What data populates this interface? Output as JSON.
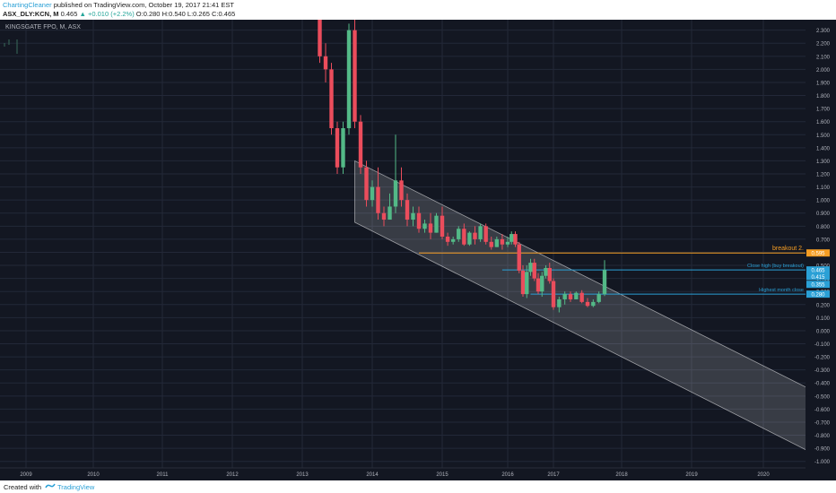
{
  "header": {
    "author": "ChartingCleaner",
    "published": "published on TradingView.com, October 19, 2017 21:41 EST",
    "symbol": "ASX_DLY:KCN, M",
    "last": "0.465",
    "change": "▲ +0.010 (+2.2%)",
    "ohlc": "O:0.280 H:0.540 L:0.265 C:0.465"
  },
  "footer": {
    "created_with": "Created with",
    "brand": "TradingView",
    "logo_icon": "tradingview-logo-icon"
  },
  "colors": {
    "bg": "#131722",
    "grid": "#232838",
    "up": "#53b987",
    "down": "#eb4d5c",
    "channel": "#ffffff",
    "orange": "#f59d23",
    "cyan": "#2aa0d6",
    "axis_text": "#b2b5be"
  },
  "chart_data": {
    "type": "candlestick",
    "title": "KINGSGATE FPO, M, ASX",
    "ylim": [
      -1.05,
      2.38
    ],
    "y_ticks": [
      2.3,
      2.2,
      2.1,
      2.0,
      1.9,
      1.8,
      1.7,
      1.6,
      1.5,
      1.4,
      1.3,
      1.2,
      1.1,
      1.0,
      0.9,
      0.8,
      0.7,
      0.6,
      0.5,
      0.4,
      0.3,
      0.2,
      0.1,
      0.0,
      -0.1,
      -0.2,
      -0.3,
      -0.4,
      -0.5,
      -0.6,
      -0.7,
      -0.8,
      -0.9,
      -1.0
    ],
    "y_tick_labels": [
      "2.300",
      "2.200",
      "2.100",
      "2.000",
      "1.900",
      "1.800",
      "1.700",
      "1.600",
      "1.500",
      "1.400",
      "1.300",
      "1.200",
      "1.100",
      "1.000",
      "0.900",
      "0.800",
      "0.700",
      "0.600",
      "0.500",
      "0.400",
      "0.300",
      "0.200",
      "0.100",
      "0.000",
      "-0.100",
      "-0.200",
      "-0.300",
      "-0.400",
      "-0.500",
      "-0.600",
      "-0.700",
      "-0.800",
      "-0.900",
      "-1.000"
    ],
    "x_ticks": [
      "2009",
      "2010",
      "2011",
      "2012",
      "2013",
      "2014",
      "2015",
      "2016",
      "2017",
      "2018",
      "2019",
      "2020"
    ],
    "candles": [
      [
        "2013-04",
        2.45,
        2.5,
        2.05,
        2.1
      ],
      [
        "2013-05",
        2.1,
        2.2,
        1.9,
        2.0
      ],
      [
        "2013-06",
        2.0,
        2.05,
        1.5,
        1.55
      ],
      [
        "2013-07",
        1.55,
        1.6,
        1.2,
        1.25
      ],
      [
        "2013-08",
        1.25,
        1.6,
        1.2,
        1.55
      ],
      [
        "2013-09",
        1.55,
        2.35,
        1.5,
        2.3
      ],
      [
        "2013-10",
        2.3,
        2.4,
        1.55,
        1.6
      ],
      [
        "2013-11",
        1.6,
        1.65,
        1.2,
        1.25
      ],
      [
        "2013-12",
        1.25,
        1.3,
        0.95,
        1.0
      ],
      [
        "2014-01",
        1.0,
        1.15,
        0.95,
        1.1
      ],
      [
        "2014-02",
        1.1,
        1.25,
        0.85,
        0.9
      ],
      [
        "2014-03",
        0.9,
        0.95,
        0.8,
        0.85
      ],
      [
        "2014-04",
        0.85,
        1.05,
        0.85,
        0.95
      ],
      [
        "2014-05",
        0.95,
        1.5,
        0.9,
        1.15
      ],
      [
        "2014-06",
        1.15,
        1.25,
        0.95,
        1.0
      ],
      [
        "2014-07",
        1.0,
        1.05,
        0.8,
        0.85
      ],
      [
        "2014-08",
        0.85,
        0.95,
        0.8,
        0.9
      ],
      [
        "2014-09",
        0.9,
        0.95,
        0.75,
        0.78
      ],
      [
        "2014-10",
        0.78,
        0.85,
        0.75,
        0.82
      ],
      [
        "2014-11",
        0.82,
        0.9,
        0.7,
        0.75
      ],
      [
        "2014-12",
        0.75,
        0.9,
        0.75,
        0.88
      ],
      [
        "2015-01",
        0.88,
        0.95,
        0.7,
        0.72
      ],
      [
        "2015-02",
        0.72,
        0.75,
        0.65,
        0.68
      ],
      [
        "2015-03",
        0.68,
        0.72,
        0.66,
        0.7
      ],
      [
        "2015-04",
        0.7,
        0.8,
        0.68,
        0.78
      ],
      [
        "2015-05",
        0.78,
        0.82,
        0.65,
        0.66
      ],
      [
        "2015-06",
        0.66,
        0.76,
        0.65,
        0.75
      ],
      [
        "2015-07",
        0.75,
        0.8,
        0.66,
        0.7
      ],
      [
        "2015-08",
        0.7,
        0.82,
        0.68,
        0.8
      ],
      [
        "2015-09",
        0.8,
        0.82,
        0.66,
        0.68
      ],
      [
        "2015-10",
        0.68,
        0.72,
        0.62,
        0.64
      ],
      [
        "2015-11",
        0.64,
        0.72,
        0.64,
        0.7
      ],
      [
        "2015-12",
        0.7,
        0.74,
        0.62,
        0.66
      ],
      [
        "2016-01",
        0.66,
        0.72,
        0.64,
        0.68
      ],
      [
        "2016-02",
        0.68,
        0.76,
        0.66,
        0.74
      ],
      [
        "2016-03",
        0.74,
        0.76,
        0.64,
        0.66
      ],
      [
        "2016-04",
        0.66,
        0.68,
        0.44,
        0.46
      ],
      [
        "2016-05",
        0.46,
        0.5,
        0.26,
        0.28
      ],
      [
        "2016-06",
        0.28,
        0.5,
        0.25,
        0.45
      ],
      [
        "2016-07",
        0.45,
        0.55,
        0.42,
        0.52
      ],
      [
        "2016-08",
        0.52,
        0.55,
        0.38,
        0.4
      ],
      [
        "2016-09",
        0.4,
        0.44,
        0.28,
        0.3
      ],
      [
        "2016-10",
        0.3,
        0.45,
        0.26,
        0.42
      ],
      [
        "2016-11",
        0.42,
        0.5,
        0.4,
        0.48
      ],
      [
        "2016-12",
        0.48,
        0.52,
        0.36,
        0.38
      ],
      [
        "2017-01",
        0.38,
        0.4,
        0.16,
        0.18
      ],
      [
        "2017-02",
        0.18,
        0.26,
        0.14,
        0.24
      ],
      [
        "2017-03",
        0.24,
        0.3,
        0.2,
        0.28
      ],
      [
        "2017-04",
        0.28,
        0.3,
        0.22,
        0.24
      ],
      [
        "2017-05",
        0.24,
        0.3,
        0.24,
        0.29
      ],
      [
        "2017-06",
        0.29,
        0.31,
        0.21,
        0.22
      ],
      [
        "2017-07",
        0.22,
        0.25,
        0.18,
        0.19
      ],
      [
        "2017-08",
        0.19,
        0.24,
        0.18,
        0.22
      ],
      [
        "2017-09",
        0.22,
        0.3,
        0.21,
        0.28
      ],
      [
        "2017-10",
        0.28,
        0.54,
        0.265,
        0.465
      ]
    ],
    "channel": {
      "upper_start": [
        "2013-10",
        1.3
      ],
      "lower_start": [
        "2013-10",
        0.83
      ],
      "end_date": "2020-10",
      "upper_end": -0.47,
      "lower_end": -0.95
    },
    "levels": [
      {
        "value": 0.595,
        "label": "breakout 2.",
        "tag": "0.595",
        "color": "#f59d23",
        "from": "2014-09"
      },
      {
        "value": 0.465,
        "label": "Close high (buy breakout)",
        "tag": "0.465",
        "color": "#2aa0d6",
        "from": "2015-12"
      },
      {
        "value": 0.28,
        "label": "Highest month close",
        "tag": "0.280",
        "color": "#2aa0d6",
        "from": "2016-07"
      }
    ],
    "extra_tags": [
      {
        "value": 0.415,
        "tag": "0.415",
        "color": "#2aa0d6"
      },
      {
        "value": 0.355,
        "tag": "0.355",
        "color": "#2aa0d6"
      }
    ]
  }
}
